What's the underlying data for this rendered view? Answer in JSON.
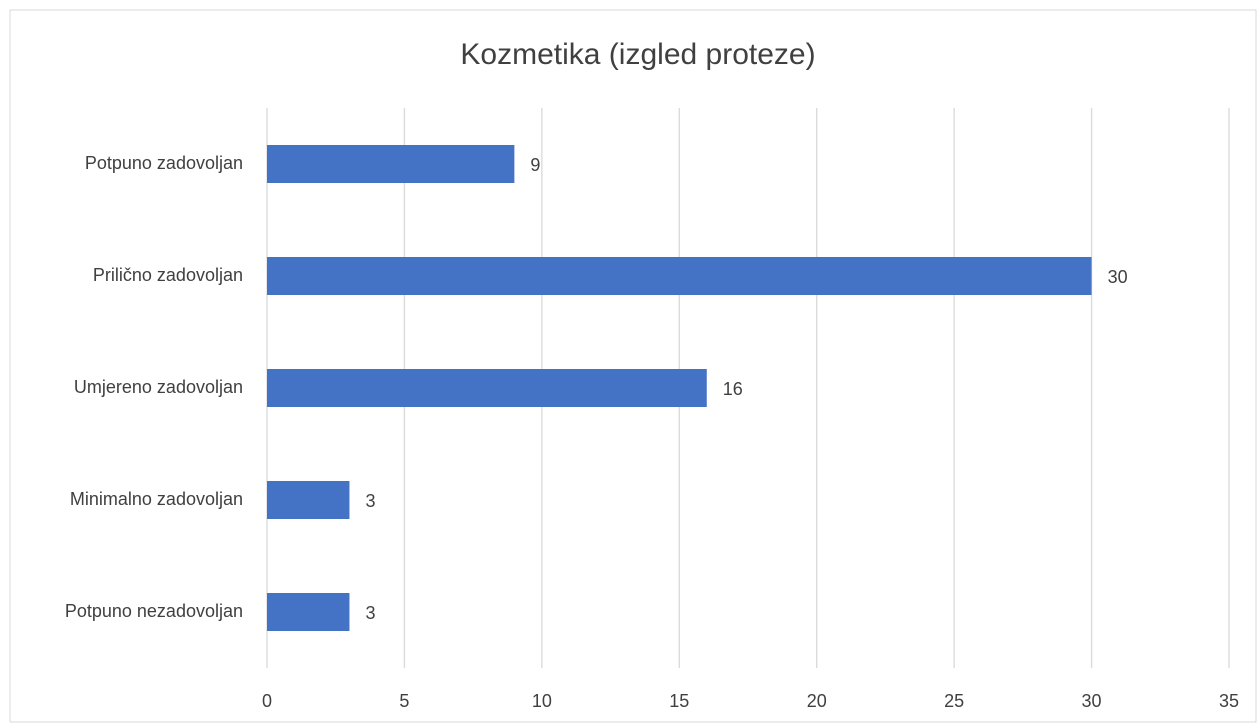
{
  "chart_data": {
    "type": "hbar",
    "title": "Kozmetika (izgled proteze)",
    "categories": [
      "Potpuno zadovoljan",
      "Prilično zadovoljan",
      "Umjereno zadovoljan",
      "Minimalno zadovoljan",
      "Potpuno nezadovoljan"
    ],
    "values": [
      9,
      30,
      16,
      3,
      3
    ],
    "color": "#4472c4",
    "xlim": [
      0,
      35
    ],
    "xticks": [
      0,
      5,
      10,
      15,
      20,
      25,
      30,
      35
    ],
    "grid": true
  }
}
